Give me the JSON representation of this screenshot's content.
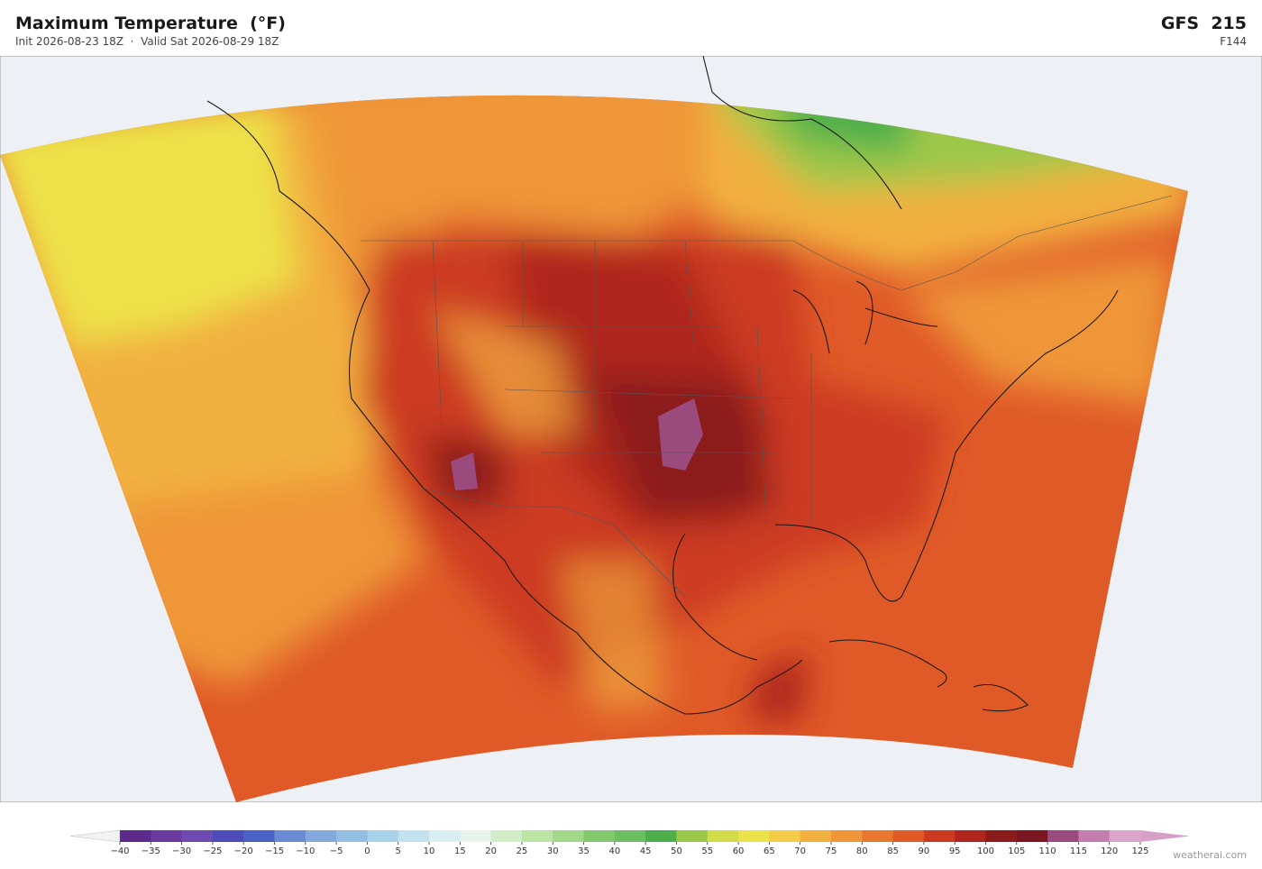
{
  "header": {
    "title": "Maximum Temperature  (°F)",
    "subtitle": "Init 2026-08-23 18Z  ·  Valid Sat 2026-08-29 18Z",
    "model": "GFS  215",
    "forecast_hour": "F144"
  },
  "colorbar": {
    "ticks": [
      {
        "value": -40,
        "label": "−40"
      },
      {
        "value": -35,
        "label": "−35"
      },
      {
        "value": -30,
        "label": "−30"
      },
      {
        "value": -25,
        "label": "−25"
      },
      {
        "value": -20,
        "label": "−20"
      },
      {
        "value": -15,
        "label": "−15"
      },
      {
        "value": -10,
        "label": "−10"
      },
      {
        "value": -5,
        "label": "−5"
      },
      0,
      5,
      10,
      15,
      20,
      25,
      30,
      35,
      40,
      45,
      50,
      55,
      60,
      65,
      70,
      75,
      80,
      85,
      90,
      95,
      100,
      105,
      110,
      115,
      120,
      125
    ],
    "colors": [
      "#5b2a8a",
      "#6a3a9e",
      "#6e4ab2",
      "#4d4cb8",
      "#4a62c8",
      "#6a8ad4",
      "#82a8dc",
      "#94bde2",
      "#a9d2ea",
      "#c2e2f0",
      "#d8eef2",
      "#e6f4ea",
      "#d2ecc8",
      "#bce4a4",
      "#a2d88a",
      "#84c86e",
      "#6cbf60",
      "#4caf4c",
      "#9cc84a",
      "#d2dc48",
      "#ede24a",
      "#f4cc48",
      "#f2b040",
      "#ee9638",
      "#e87830",
      "#e05a28",
      "#cc3a22",
      "#b0261e",
      "#8c1c1c",
      "#7a1620",
      "#9b4a7e",
      "#c57db0",
      "#dca6cc"
    ],
    "under_color": "#f2f2f2",
    "over_color": "#d8a0c8"
  },
  "footer": {
    "credit": "weatherai.com"
  }
}
